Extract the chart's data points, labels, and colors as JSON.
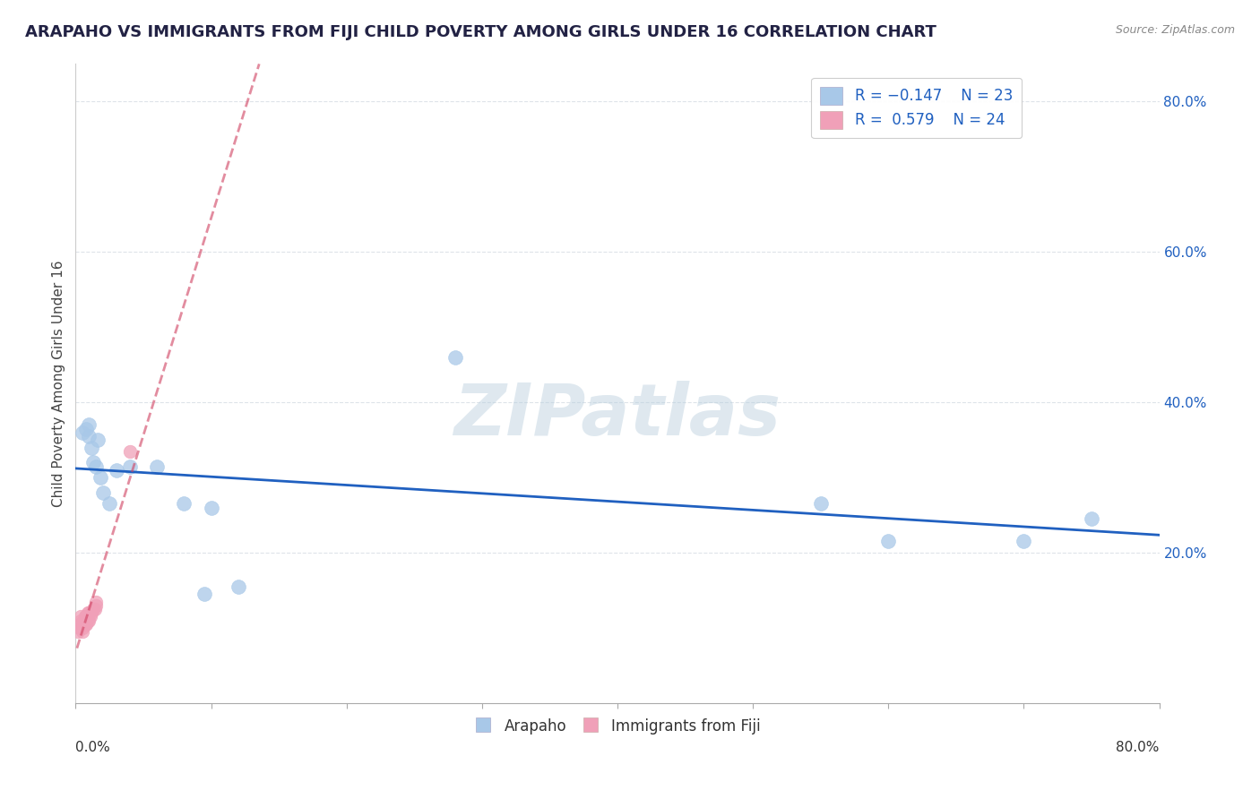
{
  "title": "ARAPAHO VS IMMIGRANTS FROM FIJI CHILD POVERTY AMONG GIRLS UNDER 16 CORRELATION CHART",
  "source": "Source: ZipAtlas.com",
  "ylabel": "Child Poverty Among Girls Under 16",
  "watermark": "ZIPatlas",
  "color_blue": "#a8c8e8",
  "color_pink": "#f0a0b8",
  "line_blue": "#2060c0",
  "line_pink": "#d04060",
  "background": "#ffffff",
  "grid_color": "#d0d8e0",
  "arapaho_x": [
    0.005,
    0.008,
    0.01,
    0.01,
    0.012,
    0.013,
    0.015,
    0.016,
    0.018,
    0.02,
    0.025,
    0.03,
    0.04,
    0.06,
    0.08,
    0.095,
    0.1,
    0.12,
    0.28,
    0.55,
    0.6,
    0.7,
    0.75
  ],
  "arapaho_y": [
    0.36,
    0.365,
    0.37,
    0.355,
    0.34,
    0.32,
    0.315,
    0.35,
    0.3,
    0.28,
    0.265,
    0.31,
    0.315,
    0.315,
    0.265,
    0.145,
    0.26,
    0.155,
    0.46,
    0.265,
    0.215,
    0.215,
    0.245
  ],
  "fiji_x": [
    0.002,
    0.003,
    0.003,
    0.004,
    0.004,
    0.005,
    0.005,
    0.006,
    0.006,
    0.007,
    0.007,
    0.008,
    0.008,
    0.009,
    0.009,
    0.01,
    0.01,
    0.011,
    0.012,
    0.013,
    0.014,
    0.015,
    0.015,
    0.04
  ],
  "fiji_y": [
    0.095,
    0.1,
    0.105,
    0.11,
    0.115,
    0.095,
    0.1,
    0.105,
    0.11,
    0.105,
    0.115,
    0.105,
    0.115,
    0.11,
    0.12,
    0.11,
    0.12,
    0.115,
    0.12,
    0.125,
    0.125,
    0.13,
    0.135,
    0.335
  ],
  "xlim": [
    0.0,
    0.8
  ],
  "ylim": [
    0.0,
    0.85
  ],
  "ytick_vals": [
    0.2,
    0.4,
    0.6,
    0.8
  ],
  "title_fontsize": 13,
  "label_fontsize": 11,
  "tick_fontsize": 11,
  "legend_label_color": "#2060c0"
}
